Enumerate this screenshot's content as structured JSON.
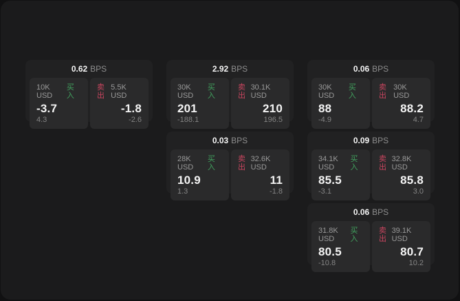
{
  "colors": {
    "buy": "#41a15e",
    "sell": "#c9455f",
    "window_bg": "#1b1b1c",
    "card_bg": "#212122",
    "panel_bg": "#2a2a2b"
  },
  "unit_label": "BPS",
  "cards": [
    {
      "row": 1,
      "col": 1,
      "spread": "0.62",
      "unit": "BPS",
      "buy": {
        "size": "10K USD",
        "label": "买入",
        "price": "-3.7",
        "sub": "4.3"
      },
      "sell": {
        "size": "5.5K USD",
        "label": "卖出",
        "price": "-1.8",
        "sub": "-2.6"
      }
    },
    {
      "row": 1,
      "col": 2,
      "spread": "2.92",
      "unit": "BPS",
      "buy": {
        "size": "30K USD",
        "label": "买入",
        "price": "201",
        "sub": "-188.1"
      },
      "sell": {
        "size": "30.1K USD",
        "label": "卖出",
        "price": "210",
        "sub": "196.5"
      }
    },
    {
      "row": 1,
      "col": 3,
      "spread": "0.06",
      "unit": "BPS",
      "buy": {
        "size": "30K USD",
        "label": "买入",
        "price": "88",
        "sub": "-4.9"
      },
      "sell": {
        "size": "30K USD",
        "label": "卖出",
        "price": "88.2",
        "sub": "4.7"
      }
    },
    {
      "row": 2,
      "col": 2,
      "spread": "0.03",
      "unit": "BPS",
      "buy": {
        "size": "28K USD",
        "label": "买入",
        "price": "10.9",
        "sub": "1.3"
      },
      "sell": {
        "size": "32.6K USD",
        "label": "卖出",
        "price": "11",
        "sub": "-1.8"
      }
    },
    {
      "row": 2,
      "col": 3,
      "spread": "0.09",
      "unit": "BPS",
      "buy": {
        "size": "34.1K USD",
        "label": "买入",
        "price": "85.5",
        "sub": "-3.1"
      },
      "sell": {
        "size": "32.8K USD",
        "label": "卖出",
        "price": "85.8",
        "sub": "3.0"
      }
    },
    {
      "row": 3,
      "col": 3,
      "spread": "0.06",
      "unit": "BPS",
      "buy": {
        "size": "31.8K USD",
        "label": "买入",
        "price": "80.5",
        "sub": "-10.8"
      },
      "sell": {
        "size": "39.1K USD",
        "label": "卖出",
        "price": "80.7",
        "sub": "10.2"
      }
    }
  ]
}
